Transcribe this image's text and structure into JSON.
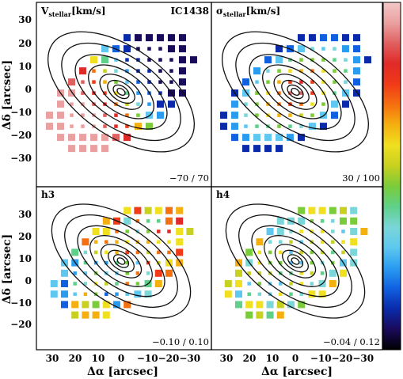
{
  "figure": {
    "galaxy": "IC1438",
    "colors": {
      "colorbar": [
        "#000000",
        "#1a0a5a",
        "#0a2aaa",
        "#1060e0",
        "#2a9cf0",
        "#5ec8f0",
        "#7ad6d8",
        "#5fd08a",
        "#7acc3a",
        "#c8d020",
        "#f0e020",
        "#f5b010",
        "#f57010",
        "#f03a18",
        "#e02a28",
        "#e06060",
        "#eaa0a0",
        "#f3c8c8"
      ]
    },
    "panels": [
      {
        "id": "vstellar",
        "label_main": "V",
        "label_sub": "stellar",
        "label_unit": "[km/s]",
        "range": "−70 / 70",
        "extra": "IC1438",
        "map": "velocity"
      },
      {
        "id": "sigma",
        "label_main": "σ",
        "label_sub": "stellar",
        "label_unit": "[km/s]",
        "range": "30 / 100",
        "extra": "",
        "map": "dispersion"
      },
      {
        "id": "h3",
        "label_main": "h3",
        "label_sub": "",
        "label_unit": "",
        "range": "−0.10 / 0.10",
        "extra": "",
        "map": "h3"
      },
      {
        "id": "h4",
        "label_main": "h4",
        "label_sub": "",
        "label_unit": "",
        "range": "−0.04 / 0.12",
        "extra": "",
        "map": "h4"
      }
    ],
    "axes": {
      "ylabel": "Δδ [arcsec]",
      "xlabel": "Δα [arcsec]",
      "yticks": [
        "30",
        "20",
        "10",
        "0",
        "−10",
        "−20",
        "−30"
      ],
      "xticks": [
        "30",
        "20",
        "10",
        "0",
        "−10−20−30"
      ]
    }
  }
}
